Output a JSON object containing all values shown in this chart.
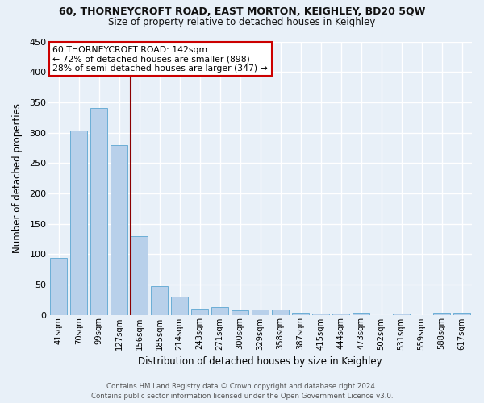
{
  "title_line1": "60, THORNEYCROFT ROAD, EAST MORTON, KEIGHLEY, BD20 5QW",
  "title_line2": "Size of property relative to detached houses in Keighley",
  "xlabel": "Distribution of detached houses by size in Keighley",
  "ylabel": "Number of detached properties",
  "footer": "Contains HM Land Registry data © Crown copyright and database right 2024.\nContains public sector information licensed under the Open Government Licence v3.0.",
  "categories": [
    "41sqm",
    "70sqm",
    "99sqm",
    "127sqm",
    "156sqm",
    "185sqm",
    "214sqm",
    "243sqm",
    "271sqm",
    "300sqm",
    "329sqm",
    "358sqm",
    "387sqm",
    "415sqm",
    "444sqm",
    "473sqm",
    "502sqm",
    "531sqm",
    "559sqm",
    "588sqm",
    "617sqm"
  ],
  "values": [
    93,
    303,
    340,
    280,
    130,
    47,
    30,
    10,
    13,
    7,
    9,
    9,
    3,
    2,
    2,
    3,
    0,
    2,
    0,
    4,
    3
  ],
  "bar_color": "#b8d0ea",
  "bar_edge_color": "#6baed6",
  "bg_color": "#e8f0f8",
  "grid_color": "#ffffff",
  "vline_x": 3.58,
  "vline_color": "#8b0000",
  "annotation_text": "60 THORNEYCROFT ROAD: 142sqm\n← 72% of detached houses are smaller (898)\n28% of semi-detached houses are larger (347) →",
  "annotation_box_color": "#ffffff",
  "annotation_box_edge": "#cc0000",
  "ylim": [
    0,
    450
  ],
  "yticks": [
    0,
    50,
    100,
    150,
    200,
    250,
    300,
    350,
    400,
    450
  ]
}
